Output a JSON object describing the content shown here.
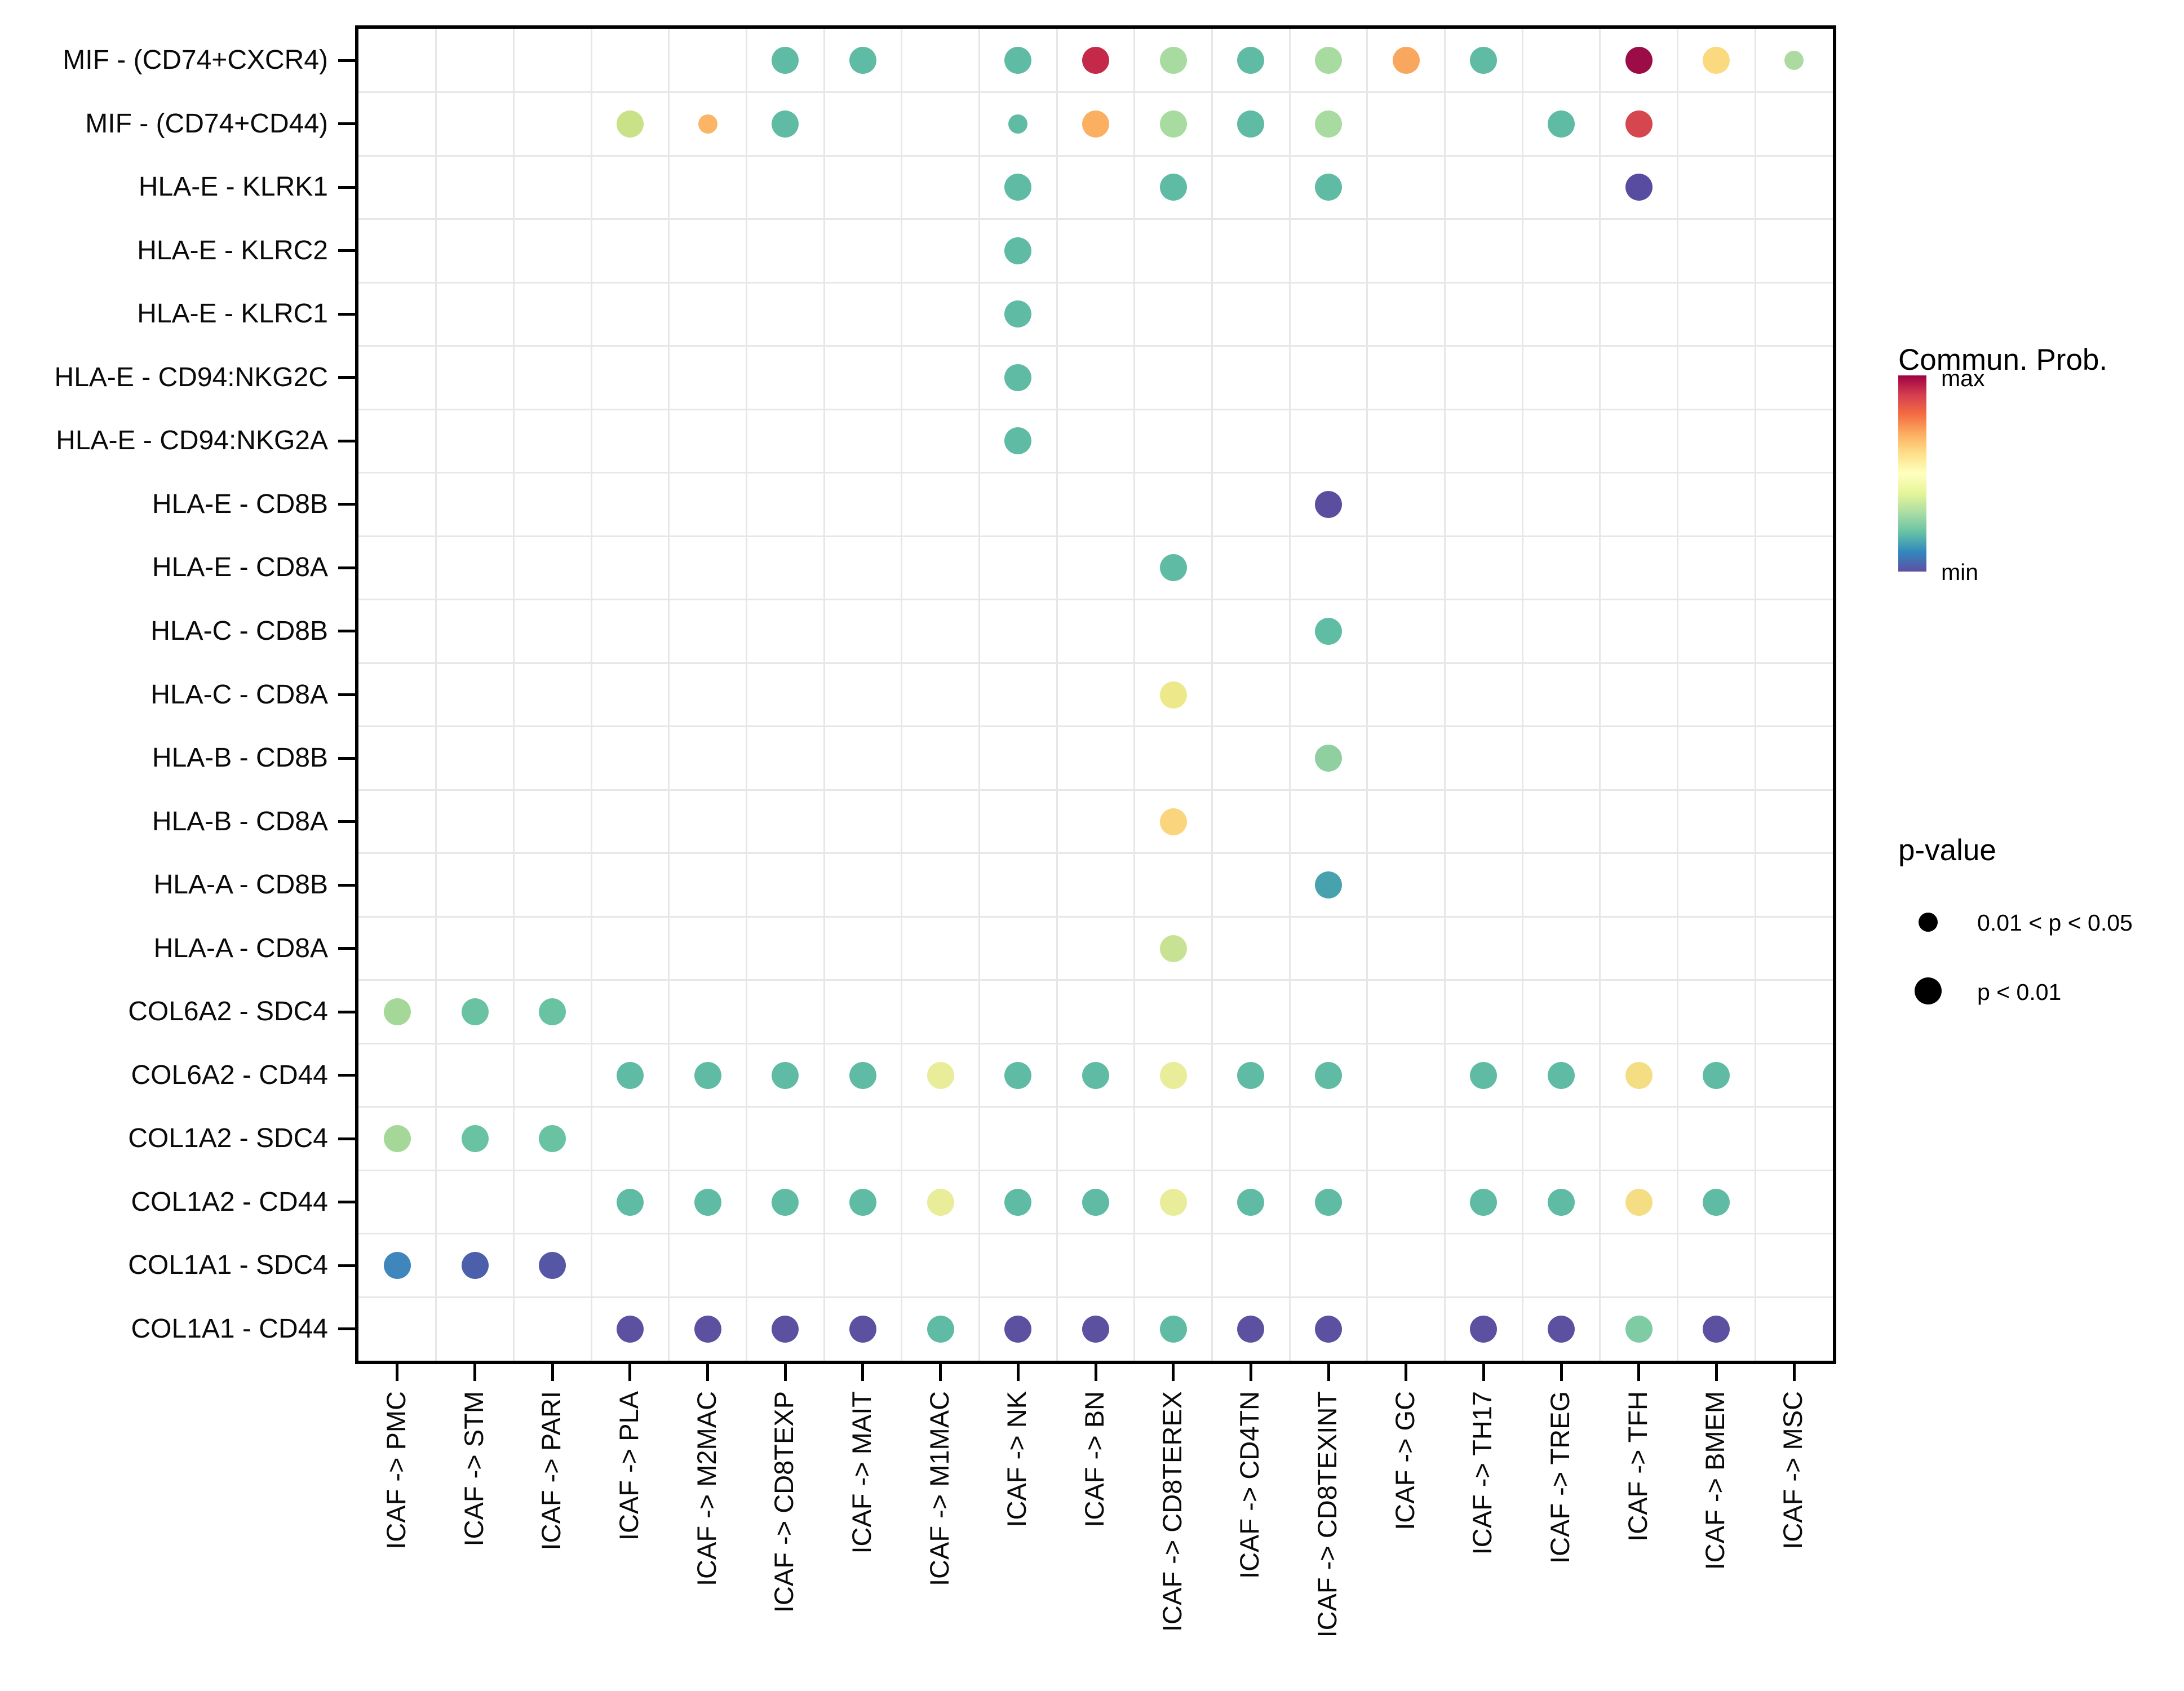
{
  "chart_data": {
    "type": "scatter",
    "subtype": "dotplot-cell-communication",
    "title": "",
    "xlabel": "",
    "ylabel": "",
    "grid": true,
    "x_categories": [
      "ICAF -> PMC",
      "ICAF -> STM",
      "ICAF -> PARI",
      "ICAF -> PLA",
      "ICAF -> M2MAC",
      "ICAF -> CD8TEXP",
      "ICAF -> MAIT",
      "ICAF -> M1MAC",
      "ICAF -> NK",
      "ICAF -> BN",
      "ICAF -> CD8TEREX",
      "ICAF -> CD4TN",
      "ICAF -> CD8TEXINT",
      "ICAF -> GC",
      "ICAF -> TH17",
      "ICAF -> TREG",
      "ICAF -> TFH",
      "ICAF -> BMEM",
      "ICAF -> MSC"
    ],
    "y_categories": [
      "MIF - (CD74+CXCR4)",
      "MIF - (CD74+CD44)",
      "HLA-E - KLRK1",
      "HLA-E - KLRC2",
      "HLA-E - KLRC1",
      "HLA-E - CD94:NKG2C",
      "HLA-E - CD94:NKG2A",
      "HLA-E - CD8B",
      "HLA-E - CD8A",
      "HLA-C - CD8B",
      "HLA-C - CD8A",
      "HLA-B - CD8B",
      "HLA-B - CD8A",
      "HLA-A - CD8B",
      "HLA-A - CD8A",
      "COL6A2 - SDC4",
      "COL6A2 - CD44",
      "COL1A2 - SDC4",
      "COL1A2 - CD44",
      "COL1A1 - SDC4",
      "COL1A1 - CD44"
    ],
    "points": [
      {
        "x": "ICAF -> CD8TEXP",
        "y": "MIF - (CD74+CXCR4)",
        "color": "#5FBBA4",
        "p": "p < 0.01"
      },
      {
        "x": "ICAF -> MAIT",
        "y": "MIF - (CD74+CXCR4)",
        "color": "#5FBBA4",
        "p": "p < 0.01"
      },
      {
        "x": "ICAF -> NK",
        "y": "MIF - (CD74+CXCR4)",
        "color": "#5FBBA4",
        "p": "p < 0.01"
      },
      {
        "x": "ICAF -> BN",
        "y": "MIF - (CD74+CXCR4)",
        "color": "#C5294A",
        "p": "p < 0.01"
      },
      {
        "x": "ICAF -> CD8TEREX",
        "y": "MIF - (CD74+CXCR4)",
        "color": "#A8DBA0",
        "p": "p < 0.01"
      },
      {
        "x": "ICAF -> CD4TN",
        "y": "MIF - (CD74+CXCR4)",
        "color": "#5FBBA4",
        "p": "p < 0.01"
      },
      {
        "x": "ICAF -> CD8TEXINT",
        "y": "MIF - (CD74+CXCR4)",
        "color": "#A8DBA0",
        "p": "p < 0.01"
      },
      {
        "x": "ICAF -> GC",
        "y": "MIF - (CD74+CXCR4)",
        "color": "#F9A75E",
        "p": "p < 0.01"
      },
      {
        "x": "ICAF -> TH17",
        "y": "MIF - (CD74+CXCR4)",
        "color": "#5FBBA4",
        "p": "p < 0.01"
      },
      {
        "x": "ICAF -> TFH",
        "y": "MIF - (CD74+CXCR4)",
        "color": "#9C0D47",
        "p": "p < 0.01"
      },
      {
        "x": "ICAF -> BMEM",
        "y": "MIF - (CD74+CXCR4)",
        "color": "#FBD97F",
        "p": "p < 0.01"
      },
      {
        "x": "ICAF -> MSC",
        "y": "MIF - (CD74+CXCR4)",
        "color": "#ACDAA0",
        "p": "0.01 < p < 0.05"
      },
      {
        "x": "ICAF -> PLA",
        "y": "MIF - (CD74+CD44)",
        "color": "#C9E187",
        "p": "p < 0.01"
      },
      {
        "x": "ICAF -> M2MAC",
        "y": "MIF - (CD74+CD44)",
        "color": "#FBB564",
        "p": "0.01 < p < 0.05"
      },
      {
        "x": "ICAF -> CD8TEXP",
        "y": "MIF - (CD74+CD44)",
        "color": "#5FBBA4",
        "p": "p < 0.01"
      },
      {
        "x": "ICAF -> NK",
        "y": "MIF - (CD74+CD44)",
        "color": "#5FBBA4",
        "p": "0.01 < p < 0.05"
      },
      {
        "x": "ICAF -> BN",
        "y": "MIF - (CD74+CD44)",
        "color": "#FBB061",
        "p": "p < 0.01"
      },
      {
        "x": "ICAF -> CD8TEREX",
        "y": "MIF - (CD74+CD44)",
        "color": "#A8DBA0",
        "p": "p < 0.01"
      },
      {
        "x": "ICAF -> CD4TN",
        "y": "MIF - (CD74+CD44)",
        "color": "#5FBBA4",
        "p": "p < 0.01"
      },
      {
        "x": "ICAF -> CD8TEXINT",
        "y": "MIF - (CD74+CD44)",
        "color": "#A8DBA0",
        "p": "p < 0.01"
      },
      {
        "x": "ICAF -> TREG",
        "y": "MIF - (CD74+CD44)",
        "color": "#5FBBA4",
        "p": "p < 0.01"
      },
      {
        "x": "ICAF -> TFH",
        "y": "MIF - (CD74+CD44)",
        "color": "#D6464F",
        "p": "p < 0.01"
      },
      {
        "x": "ICAF -> NK",
        "y": "HLA-E - KLRK1",
        "color": "#5FBBA4",
        "p": "p < 0.01"
      },
      {
        "x": "ICAF -> CD8TEREX",
        "y": "HLA-E - KLRK1",
        "color": "#5FBBA4",
        "p": "p < 0.01"
      },
      {
        "x": "ICAF -> CD8TEXINT",
        "y": "HLA-E - KLRK1",
        "color": "#5FBBA4",
        "p": "p < 0.01"
      },
      {
        "x": "ICAF -> TFH",
        "y": "HLA-E - KLRK1",
        "color": "#584CA1",
        "p": "p < 0.01"
      },
      {
        "x": "ICAF -> NK",
        "y": "HLA-E - KLRC2",
        "color": "#5FBBA4",
        "p": "p < 0.01"
      },
      {
        "x": "ICAF -> NK",
        "y": "HLA-E - KLRC1",
        "color": "#5FBBA4",
        "p": "p < 0.01"
      },
      {
        "x": "ICAF -> NK",
        "y": "HLA-E - CD94:NKG2C",
        "color": "#5FBBA4",
        "p": "p < 0.01"
      },
      {
        "x": "ICAF -> NK",
        "y": "HLA-E - CD94:NKG2A",
        "color": "#5FBBA4",
        "p": "p < 0.01"
      },
      {
        "x": "ICAF -> CD8TEXINT",
        "y": "HLA-E - CD8B",
        "color": "#5C4E9E",
        "p": "p < 0.01"
      },
      {
        "x": "ICAF -> CD8TEREX",
        "y": "HLA-E - CD8A",
        "color": "#5FBBA4",
        "p": "p < 0.01"
      },
      {
        "x": "ICAF -> CD8TEXINT",
        "y": "HLA-C - CD8B",
        "color": "#5FBDA3",
        "p": "p < 0.01"
      },
      {
        "x": "ICAF -> CD8TEREX",
        "y": "HLA-C - CD8A",
        "color": "#EDE98B",
        "p": "p < 0.01"
      },
      {
        "x": "ICAF -> CD8TEXINT",
        "y": "HLA-B - CD8B",
        "color": "#90CFA0",
        "p": "p < 0.01"
      },
      {
        "x": "ICAF -> CD8TEREX",
        "y": "HLA-B - CD8A",
        "color": "#FBD47E",
        "p": "p < 0.01"
      },
      {
        "x": "ICAF -> CD8TEXINT",
        "y": "HLA-A - CD8B",
        "color": "#47A2AE",
        "p": "p < 0.01"
      },
      {
        "x": "ICAF -> CD8TEREX",
        "y": "HLA-A - CD8A",
        "color": "#C8E294",
        "p": "p < 0.01"
      },
      {
        "x": "ICAF -> PMC",
        "y": "COL6A2 - SDC4",
        "color": "#A5D898",
        "p": "p < 0.01"
      },
      {
        "x": "ICAF -> STM",
        "y": "COL6A2 - SDC4",
        "color": "#69C3A3",
        "p": "p < 0.01"
      },
      {
        "x": "ICAF -> PARI",
        "y": "COL6A2 - SDC4",
        "color": "#69C3A3",
        "p": "p < 0.01"
      },
      {
        "x": "ICAF -> PLA",
        "y": "COL6A2 - CD44",
        "color": "#5FBBA4",
        "p": "p < 0.01"
      },
      {
        "x": "ICAF -> M2MAC",
        "y": "COL6A2 - CD44",
        "color": "#5FBBA4",
        "p": "p < 0.01"
      },
      {
        "x": "ICAF -> CD8TEXP",
        "y": "COL6A2 - CD44",
        "color": "#5FBBA4",
        "p": "p < 0.01"
      },
      {
        "x": "ICAF -> MAIT",
        "y": "COL6A2 - CD44",
        "color": "#5FBBA4",
        "p": "p < 0.01"
      },
      {
        "x": "ICAF -> M1MAC",
        "y": "COL6A2 - CD44",
        "color": "#E9EC99",
        "p": "p < 0.01"
      },
      {
        "x": "ICAF -> NK",
        "y": "COL6A2 - CD44",
        "color": "#5FBBA4",
        "p": "p < 0.01"
      },
      {
        "x": "ICAF -> BN",
        "y": "COL6A2 - CD44",
        "color": "#5FBBA4",
        "p": "p < 0.01"
      },
      {
        "x": "ICAF -> CD8TEREX",
        "y": "COL6A2 - CD44",
        "color": "#E9EC99",
        "p": "p < 0.01"
      },
      {
        "x": "ICAF -> CD4TN",
        "y": "COL6A2 - CD44",
        "color": "#5FBBA4",
        "p": "p < 0.01"
      },
      {
        "x": "ICAF -> CD8TEXINT",
        "y": "COL6A2 - CD44",
        "color": "#5FBBA4",
        "p": "p < 0.01"
      },
      {
        "x": "ICAF -> TH17",
        "y": "COL6A2 - CD44",
        "color": "#5FBBA4",
        "p": "p < 0.01"
      },
      {
        "x": "ICAF -> TREG",
        "y": "COL6A2 - CD44",
        "color": "#5FBBA4",
        "p": "p < 0.01"
      },
      {
        "x": "ICAF -> TFH",
        "y": "COL6A2 - CD44",
        "color": "#F5DD84",
        "p": "p < 0.01"
      },
      {
        "x": "ICAF -> BMEM",
        "y": "COL6A2 - CD44",
        "color": "#5FBBA4",
        "p": "p < 0.01"
      },
      {
        "x": "ICAF -> PMC",
        "y": "COL1A2 - SDC4",
        "color": "#A5D898",
        "p": "p < 0.01"
      },
      {
        "x": "ICAF -> STM",
        "y": "COL1A2 - SDC4",
        "color": "#69C3A3",
        "p": "p < 0.01"
      },
      {
        "x": "ICAF -> PARI",
        "y": "COL1A2 - SDC4",
        "color": "#69C3A3",
        "p": "p < 0.01"
      },
      {
        "x": "ICAF -> PLA",
        "y": "COL1A2 - CD44",
        "color": "#5FBBA4",
        "p": "p < 0.01"
      },
      {
        "x": "ICAF -> M2MAC",
        "y": "COL1A2 - CD44",
        "color": "#5FBBA4",
        "p": "p < 0.01"
      },
      {
        "x": "ICAF -> CD8TEXP",
        "y": "COL1A2 - CD44",
        "color": "#5FBBA4",
        "p": "p < 0.01"
      },
      {
        "x": "ICAF -> MAIT",
        "y": "COL1A2 - CD44",
        "color": "#5FBBA4",
        "p": "p < 0.01"
      },
      {
        "x": "ICAF -> M1MAC",
        "y": "COL1A2 - CD44",
        "color": "#E9EC99",
        "p": "p < 0.01"
      },
      {
        "x": "ICAF -> NK",
        "y": "COL1A2 - CD44",
        "color": "#5FBBA4",
        "p": "p < 0.01"
      },
      {
        "x": "ICAF -> BN",
        "y": "COL1A2 - CD44",
        "color": "#5FBBA4",
        "p": "p < 0.01"
      },
      {
        "x": "ICAF -> CD8TEREX",
        "y": "COL1A2 - CD44",
        "color": "#E9EC99",
        "p": "p < 0.01"
      },
      {
        "x": "ICAF -> CD4TN",
        "y": "COL1A2 - CD44",
        "color": "#5FBBA4",
        "p": "p < 0.01"
      },
      {
        "x": "ICAF -> CD8TEXINT",
        "y": "COL1A2 - CD44",
        "color": "#5FBBA4",
        "p": "p < 0.01"
      },
      {
        "x": "ICAF -> TH17",
        "y": "COL1A2 - CD44",
        "color": "#5FBBA4",
        "p": "p < 0.01"
      },
      {
        "x": "ICAF -> TREG",
        "y": "COL1A2 - CD44",
        "color": "#5FBBA4",
        "p": "p < 0.01"
      },
      {
        "x": "ICAF -> TFH",
        "y": "COL1A2 - CD44",
        "color": "#F5DD84",
        "p": "p < 0.01"
      },
      {
        "x": "ICAF -> BMEM",
        "y": "COL1A2 - CD44",
        "color": "#5FBBA4",
        "p": "p < 0.01"
      },
      {
        "x": "ICAF -> PMC",
        "y": "COL1A1 - SDC4",
        "color": "#3E86BB",
        "p": "p < 0.01"
      },
      {
        "x": "ICAF -> STM",
        "y": "COL1A1 - SDC4",
        "color": "#4B5FAA",
        "p": "p < 0.01"
      },
      {
        "x": "ICAF -> PARI",
        "y": "COL1A1 - SDC4",
        "color": "#5557A6",
        "p": "p < 0.01"
      },
      {
        "x": "ICAF -> PLA",
        "y": "COL1A1 - CD44",
        "color": "#5C51A0",
        "p": "p < 0.01"
      },
      {
        "x": "ICAF -> M2MAC",
        "y": "COL1A1 - CD44",
        "color": "#5C51A0",
        "p": "p < 0.01"
      },
      {
        "x": "ICAF -> CD8TEXP",
        "y": "COL1A1 - CD44",
        "color": "#5C51A0",
        "p": "p < 0.01"
      },
      {
        "x": "ICAF -> MAIT",
        "y": "COL1A1 - CD44",
        "color": "#5C51A0",
        "p": "p < 0.01"
      },
      {
        "x": "ICAF -> M1MAC",
        "y": "COL1A1 - CD44",
        "color": "#5FBBA4",
        "p": "p < 0.01"
      },
      {
        "x": "ICAF -> NK",
        "y": "COL1A1 - CD44",
        "color": "#5C51A0",
        "p": "p < 0.01"
      },
      {
        "x": "ICAF -> BN",
        "y": "COL1A1 - CD44",
        "color": "#5C51A0",
        "p": "p < 0.01"
      },
      {
        "x": "ICAF -> CD8TEREX",
        "y": "COL1A1 - CD44",
        "color": "#5FBBA4",
        "p": "p < 0.01"
      },
      {
        "x": "ICAF -> CD4TN",
        "y": "COL1A1 - CD44",
        "color": "#5C51A0",
        "p": "p < 0.01"
      },
      {
        "x": "ICAF -> CD8TEXINT",
        "y": "COL1A1 - CD44",
        "color": "#5C51A0",
        "p": "p < 0.01"
      },
      {
        "x": "ICAF -> TH17",
        "y": "COL1A1 - CD44",
        "color": "#5C51A0",
        "p": "p < 0.01"
      },
      {
        "x": "ICAF -> TREG",
        "y": "COL1A1 - CD44",
        "color": "#5C51A0",
        "p": "p < 0.01"
      },
      {
        "x": "ICAF -> TFH",
        "y": "COL1A1 - CD44",
        "color": "#7FCBA4",
        "p": "p < 0.01"
      },
      {
        "x": "ICAF -> BMEM",
        "y": "COL1A1 - CD44",
        "color": "#5C51A0",
        "p": "p < 0.01"
      }
    ],
    "legend_position": "right"
  },
  "legend": {
    "color_title": "Commun. Prob.",
    "color_max_label": "max",
    "color_min_label": "min",
    "gradient_top_to_bottom": [
      "#9E0142",
      "#D53E4F",
      "#F46D43",
      "#FDAE61",
      "#FEE08B",
      "#FFFFBF",
      "#E6F598",
      "#ABDDA4",
      "#66C2A5",
      "#3288BD",
      "#5E4FA2"
    ],
    "size_title": "p-value",
    "size_items": [
      {
        "label": "0.01 < p < 0.05",
        "size": "small"
      },
      {
        "label": "p < 0.01",
        "size": "large"
      }
    ]
  }
}
